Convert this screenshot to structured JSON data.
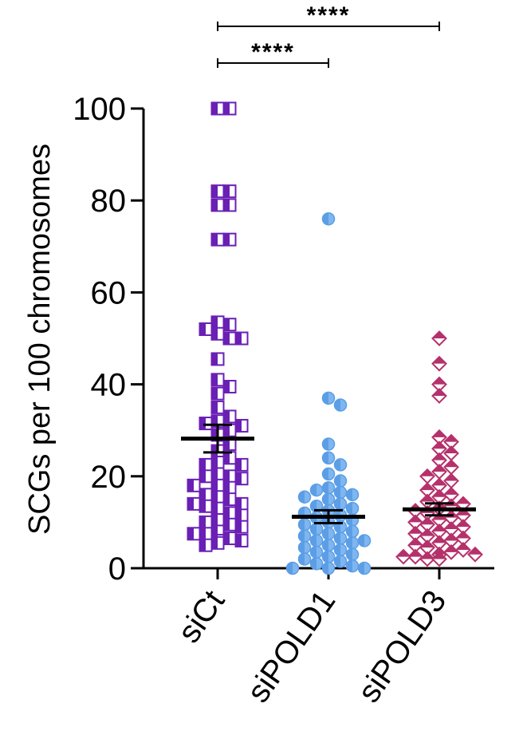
{
  "chart_data": {
    "type": "scatter",
    "ylabel": "SCGs per 100 chromosomes",
    "ylim": [
      0,
      100
    ],
    "yticks": [
      "0",
      "20",
      "40",
      "60",
      "80",
      "100"
    ],
    "categories": [
      "siCt",
      "siPOLD1",
      "siPOLD3"
    ],
    "series": [
      {
        "category": "siCt",
        "marker": "half-square",
        "color": "#6a1fb5",
        "mean": 28.2,
        "sem": 3.0,
        "values": [
          100,
          100,
          82,
          82,
          79,
          79,
          71.5,
          71.5,
          53.5,
          53,
          52,
          51,
          50,
          50,
          45.5,
          41,
          39.5,
          38,
          35,
          33,
          32,
          31.5,
          31,
          30,
          29,
          27,
          25.5,
          24,
          23,
          22.5,
          22.5,
          20.5,
          20,
          20,
          19.5,
          18,
          18,
          17.5,
          16,
          15.5,
          15,
          14,
          14,
          13.5,
          13,
          12,
          11.5,
          10.5,
          10,
          9.5,
          9,
          8,
          7.5,
          7.5,
          6.5,
          6,
          6,
          5.5,
          5
        ]
      },
      {
        "category": "siPOLD1",
        "marker": "half-circle",
        "color": "#5b9ee6",
        "mean": 11.2,
        "sem": 1.4,
        "values": [
          76,
          37,
          35.5,
          27,
          24,
          22.5,
          20.5,
          19,
          17.5,
          17,
          16.5,
          16,
          15.5,
          15,
          14,
          13.5,
          13,
          12.5,
          12,
          11.5,
          11,
          10.5,
          10,
          9.5,
          9,
          8.5,
          8,
          7.5,
          7,
          6.5,
          6,
          6,
          5.5,
          5,
          4.5,
          4,
          3.5,
          3,
          2.5,
          2,
          1.5,
          1,
          0.5,
          0,
          0,
          0
        ]
      },
      {
        "category": "siPOLD3",
        "marker": "half-diamond",
        "color": "#b5316b",
        "mean": 12.8,
        "sem": 1.3,
        "values": [
          50,
          44.5,
          40,
          37.5,
          28.5,
          27.5,
          26,
          25,
          23.5,
          22,
          21,
          20,
          19,
          18,
          17,
          16,
          15.5,
          14.5,
          14,
          13.5,
          13,
          12.5,
          12,
          11.5,
          11,
          10.5,
          10,
          9.5,
          9,
          8.5,
          8,
          7.5,
          7,
          6.5,
          6,
          5.5,
          5,
          4.5,
          4,
          3.5,
          3,
          3,
          2.5,
          2.5,
          2,
          2
        ]
      }
    ],
    "significance": [
      {
        "from": "siCt",
        "to": "siPOLD3",
        "label": "****"
      },
      {
        "from": "siCt",
        "to": "siPOLD1",
        "label": "****"
      }
    ]
  }
}
